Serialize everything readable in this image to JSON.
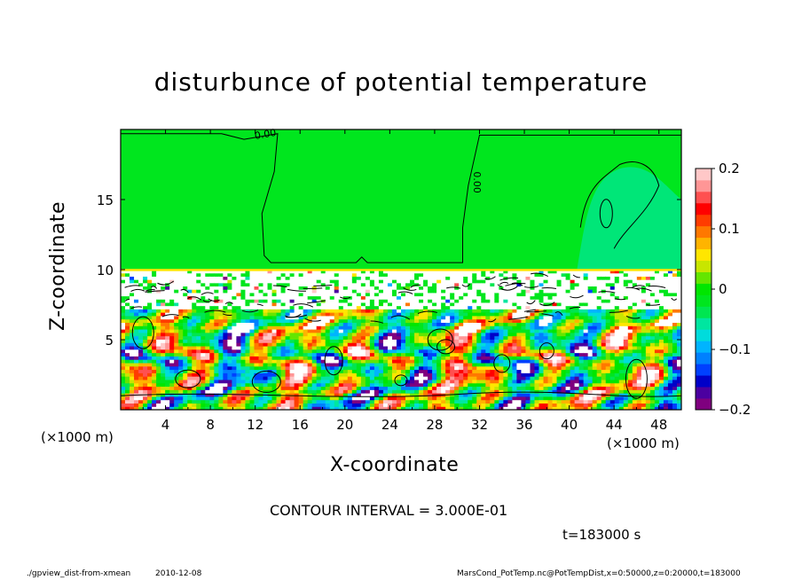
{
  "figure": {
    "script": "./gpview_dist-from-xmean",
    "date": "2010-12-08",
    "source": "MarsCond_PotTemp.nc@PotTempDist,x=0:50000,z=0:20000,t=183000",
    "contour_interval": "CONTOUR INTERVAL = 3.000E-01",
    "time_label": "t=183000 s",
    "xunit_left": "(×1000 m)",
    "xunit_right": "(×1000 m)"
  },
  "chart_data": {
    "type": "heatmap",
    "title": "disturbunce of potential temperature",
    "xlabel": "X-coordinate",
    "ylabel": "Z-coordinate",
    "x_unit": "(×1000 m)",
    "xlim": [
      0,
      50
    ],
    "ylim": [
      0,
      20
    ],
    "xticks": [
      4,
      8,
      12,
      16,
      20,
      24,
      28,
      32,
      36,
      40,
      44,
      48
    ],
    "yticks": [
      5,
      10,
      15
    ],
    "colorbar": {
      "range": [
        -0.2,
        0.2
      ],
      "ticks": [
        0.2,
        0.1,
        0,
        -0.1,
        -0.2
      ],
      "tick_labels": [
        "0.2",
        "0.1",
        "0",
        "−0.1",
        "−0.2"
      ],
      "colors": [
        "#7f007f",
        "#4b00a0",
        "#0000c8",
        "#0040ff",
        "#0080ff",
        "#00b4ff",
        "#00dcdc",
        "#00e6a0",
        "#00e650",
        "#00e61e",
        "#00e600",
        "#64e600",
        "#c8e600",
        "#ffe600",
        "#ffb400",
        "#ff7800",
        "#ff3c00",
        "#ff0000",
        "#ff5050",
        "#ff9696",
        "#ffc8c8"
      ]
    },
    "contour_labels": [
      {
        "text": "0.00",
        "x": 12.0,
        "z": 19.3
      },
      {
        "text": "0.00",
        "x": 31.5,
        "z": 17.0
      }
    ],
    "colors": {
      "background_field": "#00e61e",
      "undefined_region": "#ffffff",
      "upper_right_region": "#00e678"
    }
  }
}
